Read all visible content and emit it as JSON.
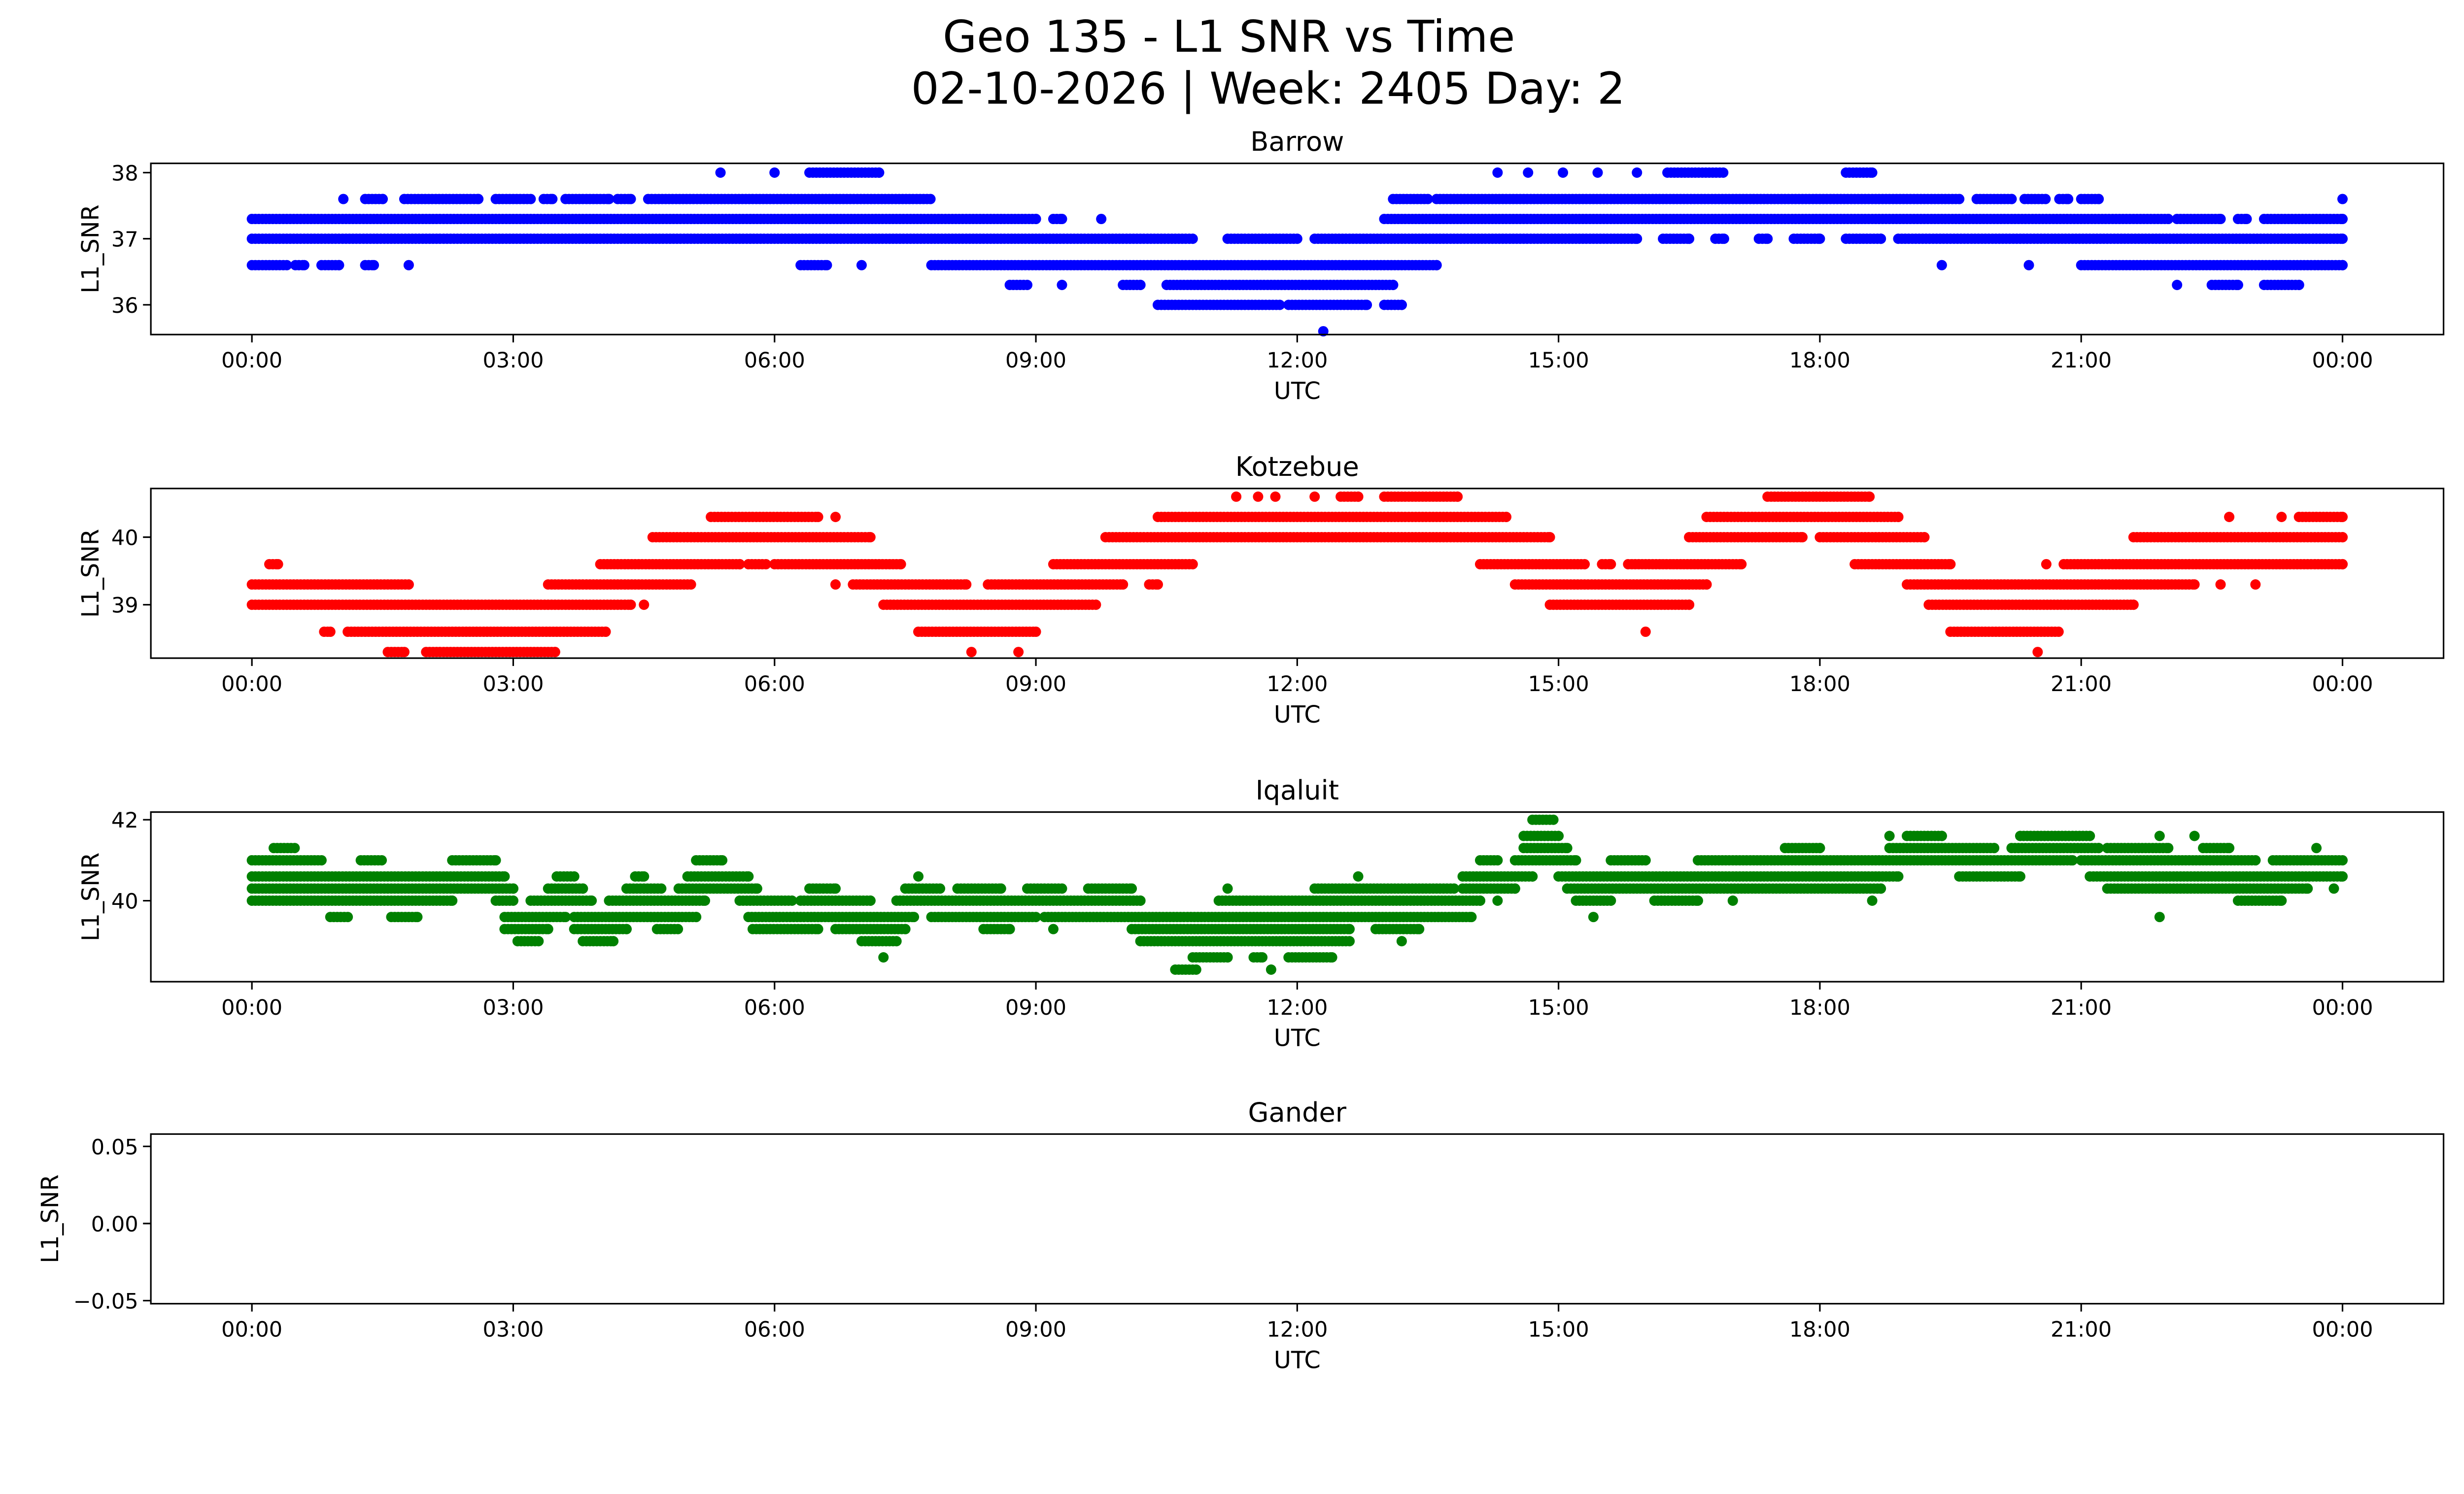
{
  "title_line1": "Geo 135 - L1 SNR vs Time",
  "title_line2": "02-10-2026 | Week: 2405 Day: 2",
  "chart_data": [
    {
      "type": "scatter",
      "title": "Barrow",
      "xlabel": "UTC",
      "ylabel": "L1_SNR",
      "color": "#0000ff",
      "xlim_hours": [
        -1.16,
        25.16
      ],
      "xticks_hours": [
        0,
        3,
        6,
        9,
        12,
        15,
        18,
        21,
        24
      ],
      "xtick_labels": [
        "00:00",
        "03:00",
        "06:00",
        "09:00",
        "12:00",
        "15:00",
        "18:00",
        "21:00",
        "00:00"
      ],
      "ylim": [
        35.55,
        38.14
      ],
      "yticks": [
        36,
        37,
        38
      ],
      "ytick_labels": [
        "36",
        "37",
        "38"
      ],
      "segments_value_start_end_hours": [
        [
          38.0,
          5.38,
          5.38
        ],
        [
          38.0,
          6.0,
          6.0
        ],
        [
          38.0,
          6.4,
          7.2
        ],
        [
          38.0,
          14.3,
          14.3
        ],
        [
          38.0,
          14.65,
          14.65
        ],
        [
          38.0,
          15.05,
          15.05
        ],
        [
          38.0,
          15.45,
          15.45
        ],
        [
          38.0,
          15.9,
          15.9
        ],
        [
          38.0,
          16.25,
          16.9
        ],
        [
          38.0,
          18.3,
          18.6
        ],
        [
          37.6,
          1.05,
          1.05
        ],
        [
          37.6,
          1.3,
          1.5
        ],
        [
          37.6,
          1.75,
          2.6
        ],
        [
          37.6,
          2.8,
          3.2
        ],
        [
          37.6,
          3.35,
          3.45
        ],
        [
          37.6,
          3.6,
          4.1
        ],
        [
          37.6,
          4.2,
          4.35
        ],
        [
          37.6,
          4.55,
          7.8
        ],
        [
          37.6,
          13.1,
          13.5
        ],
        [
          37.6,
          13.6,
          19.6
        ],
        [
          37.6,
          19.8,
          20.2
        ],
        [
          37.6,
          20.35,
          20.6
        ],
        [
          37.6,
          20.75,
          20.85
        ],
        [
          37.6,
          21.0,
          21.2
        ],
        [
          37.6,
          24.0,
          24.0
        ],
        [
          37.3,
          0.0,
          9.0
        ],
        [
          37.3,
          9.2,
          9.3
        ],
        [
          37.3,
          9.75,
          9.75
        ],
        [
          37.3,
          13.0,
          22.0
        ],
        [
          37.3,
          22.1,
          22.6
        ],
        [
          37.3,
          22.8,
          22.9
        ],
        [
          37.3,
          23.1,
          24.0
        ],
        [
          37.0,
          0.0,
          10.8
        ],
        [
          37.0,
          11.2,
          12.0
        ],
        [
          37.0,
          12.2,
          15.9
        ],
        [
          37.0,
          16.2,
          16.5
        ],
        [
          37.0,
          16.8,
          16.9
        ],
        [
          37.0,
          17.3,
          17.4
        ],
        [
          37.0,
          17.7,
          18.0
        ],
        [
          37.0,
          18.3,
          18.7
        ],
        [
          37.0,
          18.9,
          24.0
        ],
        [
          36.6,
          0.0,
          0.4
        ],
        [
          36.6,
          0.5,
          0.6
        ],
        [
          36.6,
          0.8,
          1.0
        ],
        [
          36.6,
          1.3,
          1.4
        ],
        [
          36.6,
          1.8,
          1.8
        ],
        [
          36.6,
          6.3,
          6.6
        ],
        [
          36.6,
          7.0,
          7.0
        ],
        [
          36.6,
          7.8,
          13.6
        ],
        [
          36.6,
          19.4,
          19.4
        ],
        [
          36.6,
          20.4,
          20.4
        ],
        [
          36.6,
          21.0,
          24.0
        ],
        [
          36.3,
          8.7,
          8.9
        ],
        [
          36.3,
          9.3,
          9.3
        ],
        [
          36.3,
          10.0,
          10.2
        ],
        [
          36.3,
          10.5,
          13.1
        ],
        [
          36.3,
          22.1,
          22.1
        ],
        [
          36.3,
          22.5,
          22.8
        ],
        [
          36.3,
          23.1,
          23.5
        ],
        [
          36.0,
          10.4,
          11.8
        ],
        [
          36.0,
          11.9,
          12.8
        ],
        [
          36.0,
          13.0,
          13.2
        ],
        [
          35.6,
          12.3,
          12.3
        ]
      ]
    },
    {
      "type": "scatter",
      "title": "Kotzebue",
      "xlabel": "UTC",
      "ylabel": "L1_SNR",
      "color": "#ff0000",
      "xlim_hours": [
        -1.16,
        25.16
      ],
      "xticks_hours": [
        0,
        3,
        6,
        9,
        12,
        15,
        18,
        21,
        24
      ],
      "xtick_labels": [
        "00:00",
        "03:00",
        "06:00",
        "09:00",
        "12:00",
        "15:00",
        "18:00",
        "21:00",
        "00:00"
      ],
      "ylim": [
        38.21,
        40.72
      ],
      "yticks": [
        39,
        40
      ],
      "ytick_labels": [
        "39",
        "40"
      ],
      "segments_value_start_end_hours": [
        [
          40.6,
          11.3,
          11.3
        ],
        [
          40.6,
          11.55,
          11.55
        ],
        [
          40.6,
          11.75,
          11.75
        ],
        [
          40.6,
          12.2,
          12.2
        ],
        [
          40.6,
          12.5,
          12.7
        ],
        [
          40.6,
          13.0,
          13.84
        ],
        [
          40.6,
          17.4,
          18.57
        ],
        [
          40.3,
          5.27,
          6.5
        ],
        [
          40.3,
          6.7,
          6.7
        ],
        [
          40.3,
          10.4,
          14.4
        ],
        [
          40.3,
          16.7,
          18.9
        ],
        [
          40.3,
          22.7,
          22.7
        ],
        [
          40.3,
          23.3,
          23.3
        ],
        [
          40.3,
          23.5,
          24.0
        ],
        [
          40.0,
          4.6,
          7.1
        ],
        [
          40.0,
          9.8,
          14.9
        ],
        [
          40.0,
          16.5,
          17.8
        ],
        [
          40.0,
          18.0,
          19.2
        ],
        [
          40.0,
          21.6,
          24.0
        ],
        [
          39.6,
          0.2,
          0.3
        ],
        [
          39.6,
          4.0,
          5.6
        ],
        [
          39.6,
          5.7,
          5.9
        ],
        [
          39.6,
          6.0,
          7.45
        ],
        [
          39.6,
          9.2,
          10.8
        ],
        [
          39.6,
          14.1,
          15.3
        ],
        [
          39.6,
          15.5,
          15.6
        ],
        [
          39.6,
          15.8,
          17.1
        ],
        [
          39.6,
          18.4,
          19.5
        ],
        [
          39.6,
          20.6,
          20.6
        ],
        [
          39.6,
          20.8,
          24.0
        ],
        [
          39.3,
          0.0,
          1.8
        ],
        [
          39.3,
          3.4,
          5.05
        ],
        [
          39.3,
          6.7,
          6.7
        ],
        [
          39.3,
          6.9,
          8.2
        ],
        [
          39.3,
          8.45,
          10.0
        ],
        [
          39.3,
          10.3,
          10.4
        ],
        [
          39.3,
          14.5,
          16.7
        ],
        [
          39.3,
          19.0,
          22.3
        ],
        [
          39.3,
          22.6,
          22.6
        ],
        [
          39.3,
          23.0,
          23.0
        ],
        [
          39.0,
          0.0,
          4.35
        ],
        [
          39.0,
          4.5,
          4.5
        ],
        [
          39.0,
          7.25,
          9.7
        ],
        [
          39.0,
          14.9,
          16.5
        ],
        [
          39.0,
          19.25,
          21.6
        ],
        [
          38.6,
          0.83,
          0.9
        ],
        [
          38.6,
          1.1,
          4.06
        ],
        [
          38.6,
          7.65,
          9.0
        ],
        [
          38.6,
          16.0,
          16.0
        ],
        [
          38.6,
          19.5,
          20.75
        ],
        [
          38.3,
          1.56,
          1.75
        ],
        [
          38.3,
          2.0,
          3.48
        ],
        [
          38.3,
          8.26,
          8.26
        ],
        [
          38.3,
          8.8,
          8.8
        ],
        [
          38.3,
          20.5,
          20.5
        ]
      ]
    },
    {
      "type": "scatter",
      "title": "Iqaluit",
      "xlabel": "UTC",
      "ylabel": "L1_SNR",
      "color": "#008000",
      "xlim_hours": [
        -1.16,
        25.16
      ],
      "xticks_hours": [
        0,
        3,
        6,
        9,
        12,
        15,
        18,
        21,
        24
      ],
      "xtick_labels": [
        "00:00",
        "03:00",
        "06:00",
        "09:00",
        "12:00",
        "15:00",
        "18:00",
        "21:00",
        "00:00"
      ],
      "ylim": [
        38.0,
        42.19
      ],
      "yticks": [
        40,
        42
      ],
      "ytick_labels": [
        "40",
        "42"
      ],
      "segments_value_start_end_hours": [
        [
          42.0,
          14.7,
          14.95
        ],
        [
          41.6,
          14.6,
          15.0
        ],
        [
          41.6,
          18.8,
          18.8
        ],
        [
          41.6,
          19.0,
          19.4
        ],
        [
          41.6,
          20.3,
          21.1
        ],
        [
          41.6,
          21.9,
          21.9
        ],
        [
          41.6,
          22.3,
          22.3
        ],
        [
          41.3,
          0.25,
          0.5
        ],
        [
          41.3,
          14.6,
          15.1
        ],
        [
          41.3,
          17.6,
          18.0
        ],
        [
          41.3,
          18.8,
          20.0
        ],
        [
          41.3,
          20.2,
          21.2
        ],
        [
          41.3,
          21.3,
          22.0
        ],
        [
          41.3,
          22.4,
          22.7
        ],
        [
          41.3,
          23.7,
          23.7
        ],
        [
          41.0,
          0.0,
          0.8
        ],
        [
          41.0,
          1.25,
          1.5
        ],
        [
          41.0,
          2.3,
          2.8
        ],
        [
          41.0,
          5.1,
          5.4
        ],
        [
          41.0,
          14.1,
          14.3
        ],
        [
          41.0,
          14.5,
          15.2
        ],
        [
          41.0,
          15.6,
          16.0
        ],
        [
          41.0,
          16.6,
          20.9
        ],
        [
          41.0,
          21.0,
          23.0
        ],
        [
          41.0,
          23.2,
          24.0
        ],
        [
          40.6,
          0.0,
          2.9
        ],
        [
          40.6,
          3.5,
          3.7
        ],
        [
          40.6,
          4.4,
          4.5
        ],
        [
          40.6,
          5.0,
          5.7
        ],
        [
          40.6,
          7.65,
          7.65
        ],
        [
          40.6,
          12.7,
          12.7
        ],
        [
          40.6,
          13.9,
          14.7
        ],
        [
          40.6,
          15.0,
          18.9
        ],
        [
          40.6,
          19.6,
          20.3
        ],
        [
          40.6,
          21.1,
          24.0
        ],
        [
          40.3,
          0.0,
          3.0
        ],
        [
          40.3,
          3.4,
          3.8
        ],
        [
          40.3,
          4.3,
          4.7
        ],
        [
          40.3,
          4.9,
          5.8
        ],
        [
          40.3,
          6.4,
          6.7
        ],
        [
          40.3,
          7.5,
          7.9
        ],
        [
          40.3,
          8.1,
          8.6
        ],
        [
          40.3,
          8.9,
          9.3
        ],
        [
          40.3,
          9.6,
          10.1
        ],
        [
          40.3,
          11.2,
          11.2
        ],
        [
          40.3,
          12.2,
          13.8
        ],
        [
          40.3,
          13.9,
          14.5
        ],
        [
          40.3,
          15.1,
          18.7
        ],
        [
          40.3,
          21.3,
          23.6
        ],
        [
          40.3,
          23.9,
          23.9
        ],
        [
          40.0,
          0.0,
          2.3
        ],
        [
          40.0,
          2.8,
          3.0
        ],
        [
          40.0,
          3.2,
          3.9
        ],
        [
          40.0,
          4.1,
          5.2
        ],
        [
          40.0,
          5.6,
          6.2
        ],
        [
          40.0,
          6.3,
          7.1
        ],
        [
          40.0,
          7.4,
          10.2
        ],
        [
          40.0,
          11.1,
          14.1
        ],
        [
          40.0,
          14.3,
          14.3
        ],
        [
          40.0,
          15.2,
          15.6
        ],
        [
          40.0,
          16.1,
          16.6
        ],
        [
          40.0,
          17.0,
          17.0
        ],
        [
          40.0,
          18.6,
          18.6
        ],
        [
          40.0,
          22.8,
          23.3
        ],
        [
          39.6,
          0.9,
          1.1
        ],
        [
          39.6,
          1.6,
          1.9
        ],
        [
          39.6,
          2.9,
          3.6
        ],
        [
          39.6,
          3.7,
          5.1
        ],
        [
          39.6,
          5.7,
          7.6
        ],
        [
          39.6,
          7.8,
          9.0
        ],
        [
          39.6,
          9.1,
          14.0
        ],
        [
          39.6,
          15.4,
          15.4
        ],
        [
          39.6,
          21.9,
          21.9
        ],
        [
          39.3,
          2.9,
          3.4
        ],
        [
          39.3,
          3.7,
          4.3
        ],
        [
          39.3,
          4.65,
          4.9
        ],
        [
          39.3,
          5.75,
          6.5
        ],
        [
          39.3,
          6.7,
          7.5
        ],
        [
          39.3,
          8.4,
          8.7
        ],
        [
          39.3,
          9.2,
          9.2
        ],
        [
          39.3,
          10.1,
          12.6
        ],
        [
          39.3,
          12.9,
          13.4
        ],
        [
          39.0,
          3.05,
          3.3
        ],
        [
          39.0,
          3.8,
          4.15
        ],
        [
          39.0,
          7.0,
          7.4
        ],
        [
          39.0,
          10.2,
          12.6
        ],
        [
          39.0,
          13.2,
          13.2
        ],
        [
          38.6,
          7.25,
          7.25
        ],
        [
          38.6,
          10.8,
          11.2
        ],
        [
          38.6,
          11.5,
          11.6
        ],
        [
          38.6,
          11.9,
          12.4
        ],
        [
          38.3,
          10.6,
          10.85
        ],
        [
          38.3,
          11.7,
          11.7
        ]
      ]
    },
    {
      "type": "scatter",
      "title": "Gander",
      "xlabel": "UTC",
      "ylabel": "L1_SNR",
      "color": "#000000",
      "xlim_hours": [
        -1.16,
        25.16
      ],
      "xticks_hours": [
        0,
        3,
        6,
        9,
        12,
        15,
        18,
        21,
        24
      ],
      "xtick_labels": [
        "00:00",
        "03:00",
        "06:00",
        "09:00",
        "12:00",
        "15:00",
        "18:00",
        "21:00",
        "00:00"
      ],
      "ylim": [
        -0.052,
        0.058
      ],
      "yticks": [
        -0.05,
        0.0,
        0.05
      ],
      "ytick_labels": [
        "−0.05",
        "0.00",
        "0.05"
      ],
      "segments_value_start_end_hours": []
    }
  ]
}
